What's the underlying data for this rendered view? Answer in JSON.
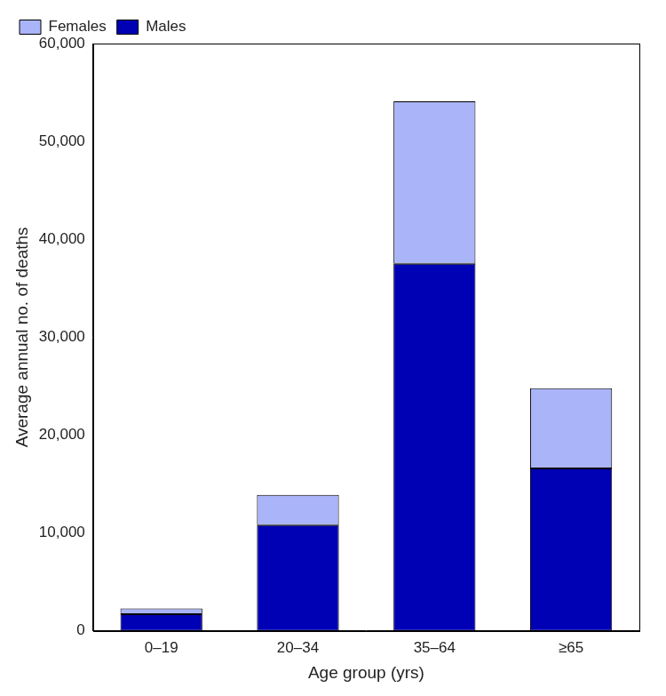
{
  "chart_data": {
    "type": "bar",
    "stacked": true,
    "categories": [
      "0–19",
      "20–34",
      "35–64",
      "≥65"
    ],
    "series": [
      {
        "name": "Males",
        "color": "#0000b4",
        "values": [
          1700,
          10800,
          37500,
          16600
        ]
      },
      {
        "name": "Females",
        "color": "#aab4f8",
        "values": [
          600,
          3100,
          16600,
          8200
        ]
      }
    ],
    "x_label": "Age group (yrs)",
    "y_label": "Average annual no. of deaths",
    "ylim": [
      0,
      60000
    ],
    "yticks": [
      0,
      {
        "value": 10000,
        "label": "10,000"
      },
      {
        "value": 20000,
        "label": "20,000"
      },
      {
        "value": 30000,
        "label": "30,000"
      },
      {
        "value": 40000,
        "label": "40,000"
      },
      {
        "value": 50000,
        "label": "50,000"
      },
      {
        "value": 60000,
        "label": "60,000"
      }
    ],
    "grid": false,
    "legend": "top-left"
  }
}
